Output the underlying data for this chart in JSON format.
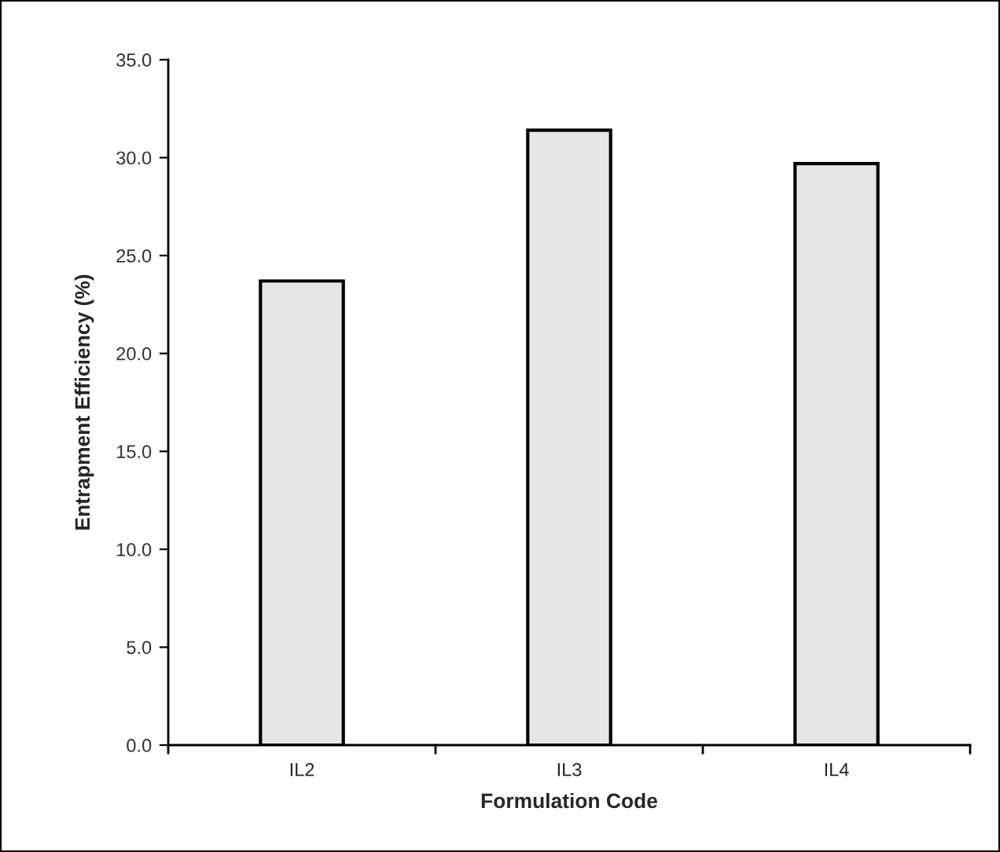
{
  "chart_data": {
    "type": "bar",
    "xlabel": "Formulation Code",
    "ylabel": "Entrapment Efficiency (%)",
    "categories": [
      "IL2",
      "IL3",
      "IL4"
    ],
    "values": [
      23.7,
      31.4,
      29.7
    ],
    "color": "#e6e6e6",
    "ylim": [
      0,
      35
    ],
    "yticks": [
      {
        "value": 0,
        "label": "0.0"
      },
      {
        "value": 5,
        "label": "5.0"
      },
      {
        "value": 10,
        "label": "10.0"
      },
      {
        "value": 15,
        "label": "15.0"
      },
      {
        "value": 20,
        "label": "20.0"
      },
      {
        "value": 25,
        "label": "25.0"
      },
      {
        "value": 30,
        "label": "30.0"
      },
      {
        "value": 35,
        "label": "35.0"
      }
    ],
    "grid": false,
    "legend": false
  }
}
